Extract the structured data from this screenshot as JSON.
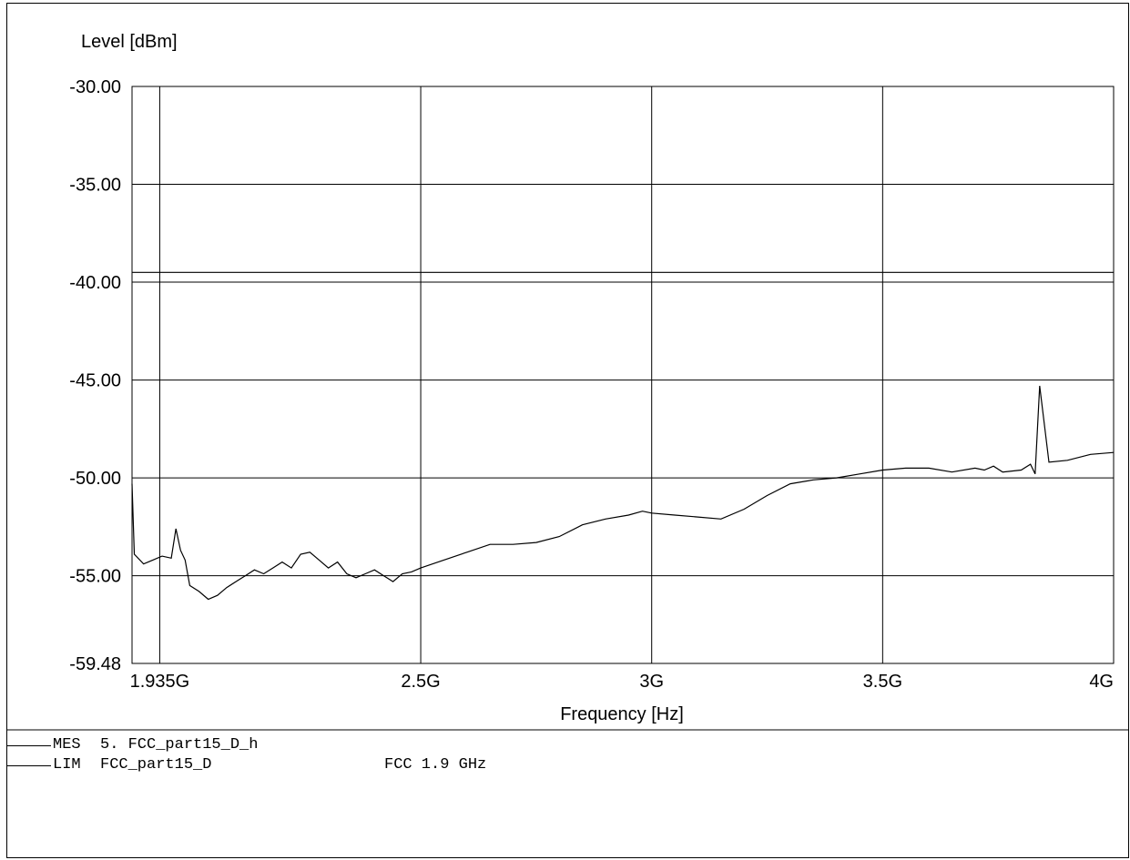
{
  "chart_data": {
    "type": "line",
    "ylabel": "Level [dBm]",
    "xlabel": "Frequency [Hz]",
    "ylim": [
      -59.48,
      -30.0
    ],
    "xlim": [
      1.875,
      4.0
    ],
    "y_ticks": [
      {
        "value": -30.0,
        "label": "-30.00"
      },
      {
        "value": -35.0,
        "label": "-35.00"
      },
      {
        "value": -40.0,
        "label": "-40.00"
      },
      {
        "value": -45.0,
        "label": "-45.00"
      },
      {
        "value": -50.0,
        "label": "-50.00"
      },
      {
        "value": -55.0,
        "label": "-55.00"
      },
      {
        "value": -59.48,
        "label": "-59.48"
      }
    ],
    "x_ticks": [
      {
        "value": 1.935,
        "label": "1.935G"
      },
      {
        "value": 2.5,
        "label": "2.5G"
      },
      {
        "value": 3.0,
        "label": "3G"
      },
      {
        "value": 3.5,
        "label": "3.5G"
      },
      {
        "value": 4.0,
        "label": "4G"
      }
    ],
    "grid": true,
    "series": [
      {
        "name": "5. FCC_part15_D_h",
        "x_unit": "GHz",
        "x": [
          1.875,
          1.88,
          1.9,
          1.92,
          1.94,
          1.96,
          1.97,
          1.98,
          1.99,
          2.0,
          2.02,
          2.04,
          2.06,
          2.08,
          2.1,
          2.12,
          2.14,
          2.16,
          2.18,
          2.2,
          2.22,
          2.24,
          2.26,
          2.28,
          2.3,
          2.32,
          2.34,
          2.36,
          2.38,
          2.4,
          2.42,
          2.44,
          2.46,
          2.48,
          2.5,
          2.55,
          2.6,
          2.65,
          2.7,
          2.75,
          2.8,
          2.85,
          2.9,
          2.95,
          2.98,
          3.0,
          3.05,
          3.1,
          3.15,
          3.2,
          3.25,
          3.3,
          3.35,
          3.4,
          3.45,
          3.5,
          3.55,
          3.6,
          3.65,
          3.7,
          3.72,
          3.74,
          3.76,
          3.8,
          3.82,
          3.83,
          3.84,
          3.86,
          3.9,
          3.95,
          4.0
        ],
        "y": [
          -50.3,
          -53.9,
          -54.4,
          -54.2,
          -54.0,
          -54.1,
          -52.6,
          -53.7,
          -54.2,
          -55.5,
          -55.8,
          -56.2,
          -56.0,
          -55.6,
          -55.3,
          -55.0,
          -54.7,
          -54.9,
          -54.6,
          -54.3,
          -54.6,
          -53.9,
          -53.8,
          -54.2,
          -54.6,
          -54.3,
          -54.9,
          -55.1,
          -54.9,
          -54.7,
          -55.0,
          -55.3,
          -54.9,
          -54.8,
          -54.6,
          -54.2,
          -53.8,
          -53.4,
          -53.4,
          -53.3,
          -53.0,
          -52.4,
          -52.1,
          -51.9,
          -51.7,
          -51.8,
          -51.9,
          -52.0,
          -52.1,
          -51.6,
          -50.9,
          -50.3,
          -50.1,
          -50.0,
          -49.8,
          -49.6,
          -49.5,
          -49.5,
          -49.7,
          -49.5,
          -49.6,
          -49.4,
          -49.7,
          -49.6,
          -49.3,
          -49.8,
          -45.3,
          -49.2,
          -49.1,
          -48.8,
          -48.7
        ]
      },
      {
        "name": "FCC_part15_D",
        "x_unit": "GHz",
        "x": [
          1.875,
          4.0
        ],
        "y": [
          -39.5,
          -39.5
        ]
      }
    ]
  },
  "legend": [
    {
      "key": "MES",
      "name": "5. FCC_part15_D_h",
      "note": ""
    },
    {
      "key": "LIM",
      "name": "FCC_part15_D",
      "note": "FCC 1.9 GHz"
    }
  ]
}
